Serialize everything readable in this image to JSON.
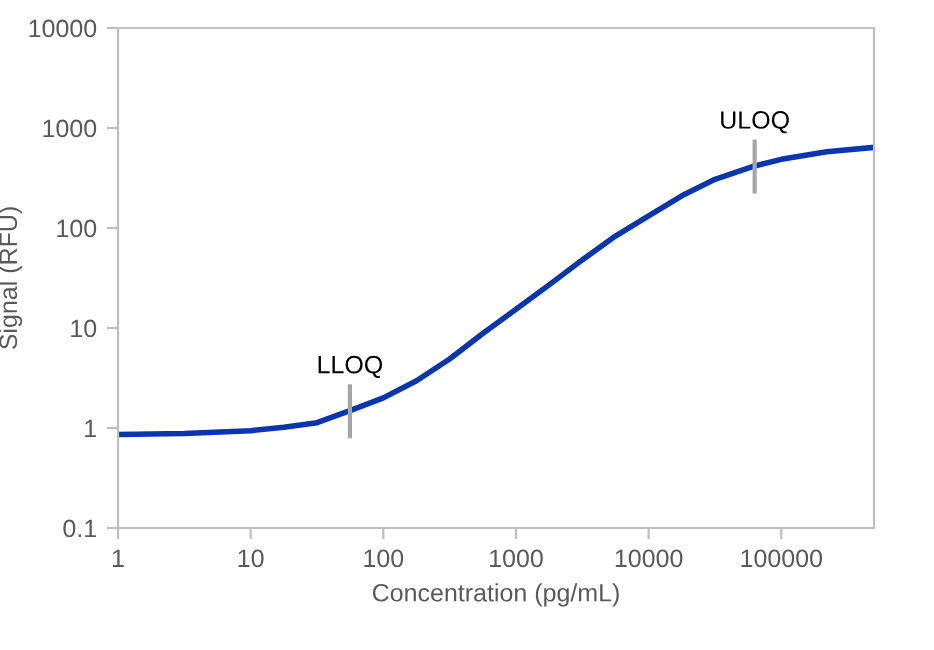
{
  "chart_data": {
    "type": "line",
    "xlabel": "Concentration (pg/mL)",
    "ylabel": "Signal (RFU)",
    "log": "xy",
    "xlim": [
      1,
      500000
    ],
    "ylim": [
      0.1,
      10000
    ],
    "xticks": [
      1,
      10,
      100,
      1000,
      10000,
      100000
    ],
    "yticks": [
      0.1,
      1,
      10,
      100,
      1000,
      10000
    ],
    "grid": false,
    "legend": false,
    "marker": "none",
    "line_style": "solid",
    "series": [
      {
        "color": "#0a35b0",
        "x": [
          1,
          3.16,
          10,
          17.8,
          31.6,
          56,
          100,
          178,
          316,
          562,
          1000,
          1778,
          3162,
          5623,
          10000,
          17783,
          31623,
          63000,
          100000,
          220000,
          500000
        ],
        "values": [
          0.86,
          0.88,
          0.94,
          1.02,
          1.13,
          1.49,
          2.0,
          2.97,
          4.9,
          8.8,
          15.4,
          27,
          48,
          83,
          132,
          210,
          307,
          417,
          486,
          580,
          640
        ]
      }
    ],
    "annotations": [
      {
        "text": "LLOQ",
        "x": 56,
        "y": 1.49
      },
      {
        "text": "ULOQ",
        "x": 63000,
        "y": 417
      }
    ]
  }
}
